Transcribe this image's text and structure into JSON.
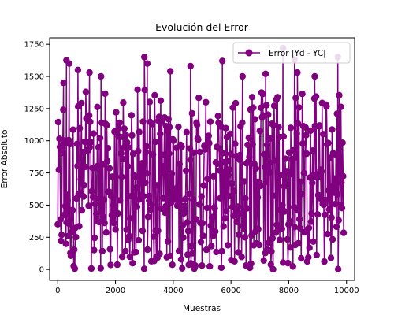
{
  "chart_data": {
    "type": "line",
    "title": "Evolución del Error",
    "xlabel": "Muestras",
    "ylabel": "Error Absoluto",
    "xlim": [
      -280,
      10280
    ],
    "ylim": [
      -85,
      1800
    ],
    "x_ticks": [
      0,
      2000,
      4000,
      6000,
      8000,
      10000
    ],
    "y_ticks": [
      0,
      250,
      500,
      750,
      1000,
      1250,
      1500,
      1750
    ],
    "grid": false,
    "legend": {
      "placement": "top-right"
    },
    "series": [
      {
        "name": "Error |Yd - YC|",
        "color": "#800080",
        "marker": "circle",
        "x_range": [
          0,
          9900
        ],
        "sample_points": [
          {
            "x": 200,
            "y": 1450
          },
          {
            "x": 300,
            "y": 1625
          },
          {
            "x": 400,
            "y": 1600
          },
          {
            "x": 700,
            "y": 1550
          },
          {
            "x": 1100,
            "y": 1530
          },
          {
            "x": 1500,
            "y": 1500
          },
          {
            "x": 3000,
            "y": 1650
          },
          {
            "x": 3100,
            "y": 1600
          },
          {
            "x": 3900,
            "y": 1540
          },
          {
            "x": 4600,
            "y": 1580
          },
          {
            "x": 5700,
            "y": 1620
          },
          {
            "x": 6400,
            "y": 1500
          },
          {
            "x": 7200,
            "y": 1520
          },
          {
            "x": 7800,
            "y": 1720
          },
          {
            "x": 8200,
            "y": 1630
          },
          {
            "x": 8300,
            "y": 1530
          },
          {
            "x": 8900,
            "y": 1500
          },
          {
            "x": 9700,
            "y": 1650
          }
        ]
      }
    ]
  }
}
